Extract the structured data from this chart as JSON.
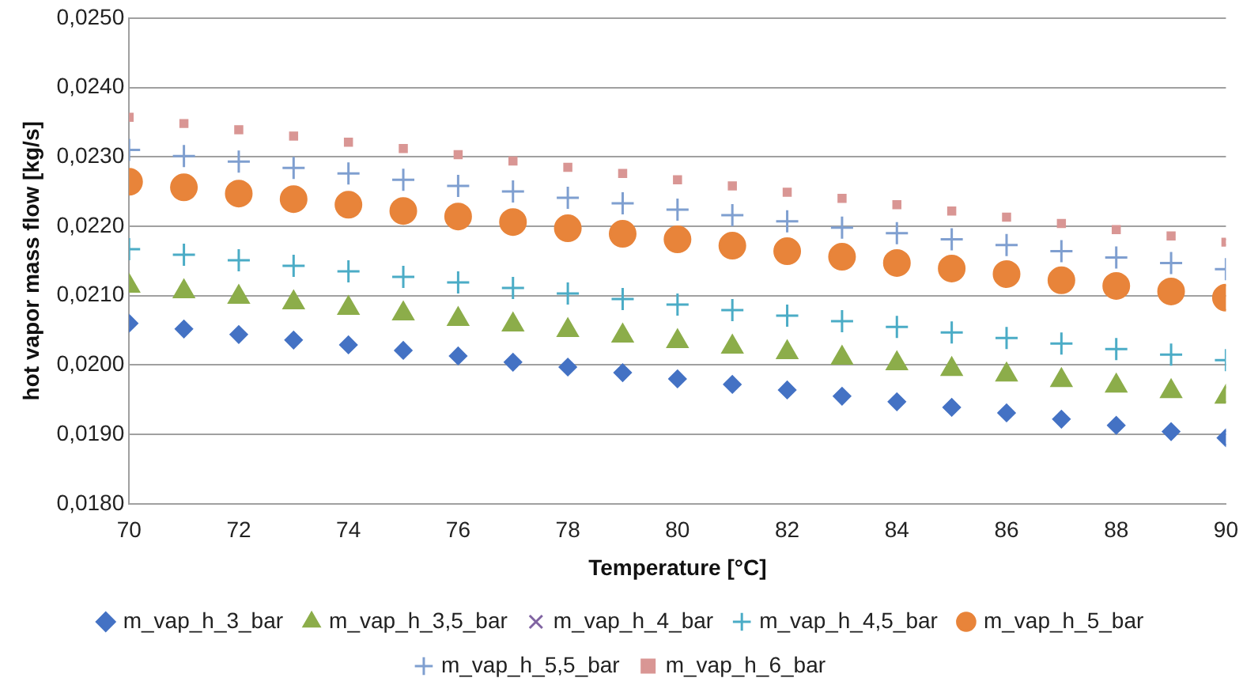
{
  "chart_data": {
    "type": "scatter",
    "xlabel": "Temperature [°C]",
    "ylabel": "hot vapor mass flow [kg/s]",
    "x": [
      70,
      71,
      72,
      73,
      74,
      75,
      76,
      77,
      78,
      79,
      80,
      81,
      82,
      83,
      84,
      85,
      86,
      87,
      88,
      89,
      90
    ],
    "xlim": [
      70,
      90
    ],
    "xticks": [
      70,
      72,
      74,
      76,
      78,
      80,
      82,
      84,
      86,
      88,
      90
    ],
    "ylim": [
      0.018,
      0.025
    ],
    "yticks": [
      {
        "value": 0.018,
        "label": "0,0180"
      },
      {
        "value": 0.019,
        "label": "0,0190"
      },
      {
        "value": 0.02,
        "label": "0,0200"
      },
      {
        "value": 0.021,
        "label": "0,0210"
      },
      {
        "value": 0.022,
        "label": "0,0220"
      },
      {
        "value": 0.023,
        "label": "0,0230"
      },
      {
        "value": 0.024,
        "label": "0,0240"
      },
      {
        "value": 0.025,
        "label": "0,0250"
      }
    ],
    "grid": "y",
    "legend": "bottom",
    "series": [
      {
        "name": "m_vap_h_3_bar",
        "color": "#4472c4",
        "marker": "diamond",
        "values": [
          0.0206,
          0.02052,
          0.02044,
          0.02036,
          0.02029,
          0.02021,
          0.02013,
          0.02004,
          0.01997,
          0.01989,
          0.0198,
          0.01972,
          0.01964,
          0.01955,
          0.01947,
          0.01939,
          0.01931,
          0.01922,
          0.01913,
          0.01904,
          0.01895
        ]
      },
      {
        "name": "m_vap_h_3,5_bar",
        "color": "#8cad4a",
        "marker": "triangle",
        "values": [
          0.02114,
          0.02106,
          0.02098,
          0.0209,
          0.02082,
          0.02074,
          0.02066,
          0.02058,
          0.0205,
          0.02042,
          0.02034,
          0.02026,
          0.02018,
          0.0201,
          0.02002,
          0.01994,
          0.01986,
          0.01978,
          0.0197,
          0.01962,
          0.01954
        ]
      },
      {
        "name": "m_vap_h_4_bar",
        "color": "#8064a2",
        "marker": "x",
        "values": [
          null,
          null,
          null,
          null,
          null,
          null,
          null,
          null,
          null,
          null,
          null,
          null,
          null,
          null,
          null,
          null,
          null,
          null,
          null,
          null,
          null
        ]
      },
      {
        "name": "m_vap_h_4,5_bar",
        "color": "#4bacc6",
        "marker": "cross",
        "values": [
          0.02167,
          0.02159,
          0.02151,
          0.02143,
          0.02135,
          0.02127,
          0.02119,
          0.02111,
          0.02103,
          0.02095,
          0.02087,
          0.02079,
          0.02071,
          0.02063,
          0.02055,
          0.02047,
          0.02039,
          0.02031,
          0.02023,
          0.02015,
          0.02007
        ]
      },
      {
        "name": "m_vap_h_5_bar",
        "color": "#e8843a",
        "marker": "circle",
        "values": [
          0.02264,
          0.02256,
          0.02247,
          0.02239,
          0.02231,
          0.02222,
          0.02214,
          0.02206,
          0.02197,
          0.02189,
          0.02181,
          0.02172,
          0.02164,
          0.02156,
          0.02147,
          0.02139,
          0.02131,
          0.02122,
          0.02114,
          0.02106,
          0.02097
        ]
      },
      {
        "name": "m_vap_h_5,5_bar",
        "color": "#7f9fd0",
        "marker": "cross",
        "values": [
          0.0231,
          0.02301,
          0.02293,
          0.02284,
          0.02276,
          0.02267,
          0.02258,
          0.0225,
          0.02241,
          0.02233,
          0.02224,
          0.02216,
          0.02207,
          0.02198,
          0.0219,
          0.02181,
          0.02173,
          0.02164,
          0.02155,
          0.02147,
          0.02138
        ]
      },
      {
        "name": "m_vap_h_6_bar",
        "color": "#d99694",
        "marker": "square",
        "values": [
          0.02357,
          0.02348,
          0.02339,
          0.0233,
          0.02321,
          0.02312,
          0.02303,
          0.02294,
          0.02285,
          0.02276,
          0.02267,
          0.02258,
          0.02249,
          0.0224,
          0.02231,
          0.02222,
          0.02213,
          0.02204,
          0.02195,
          0.02186,
          0.02177
        ]
      }
    ]
  }
}
